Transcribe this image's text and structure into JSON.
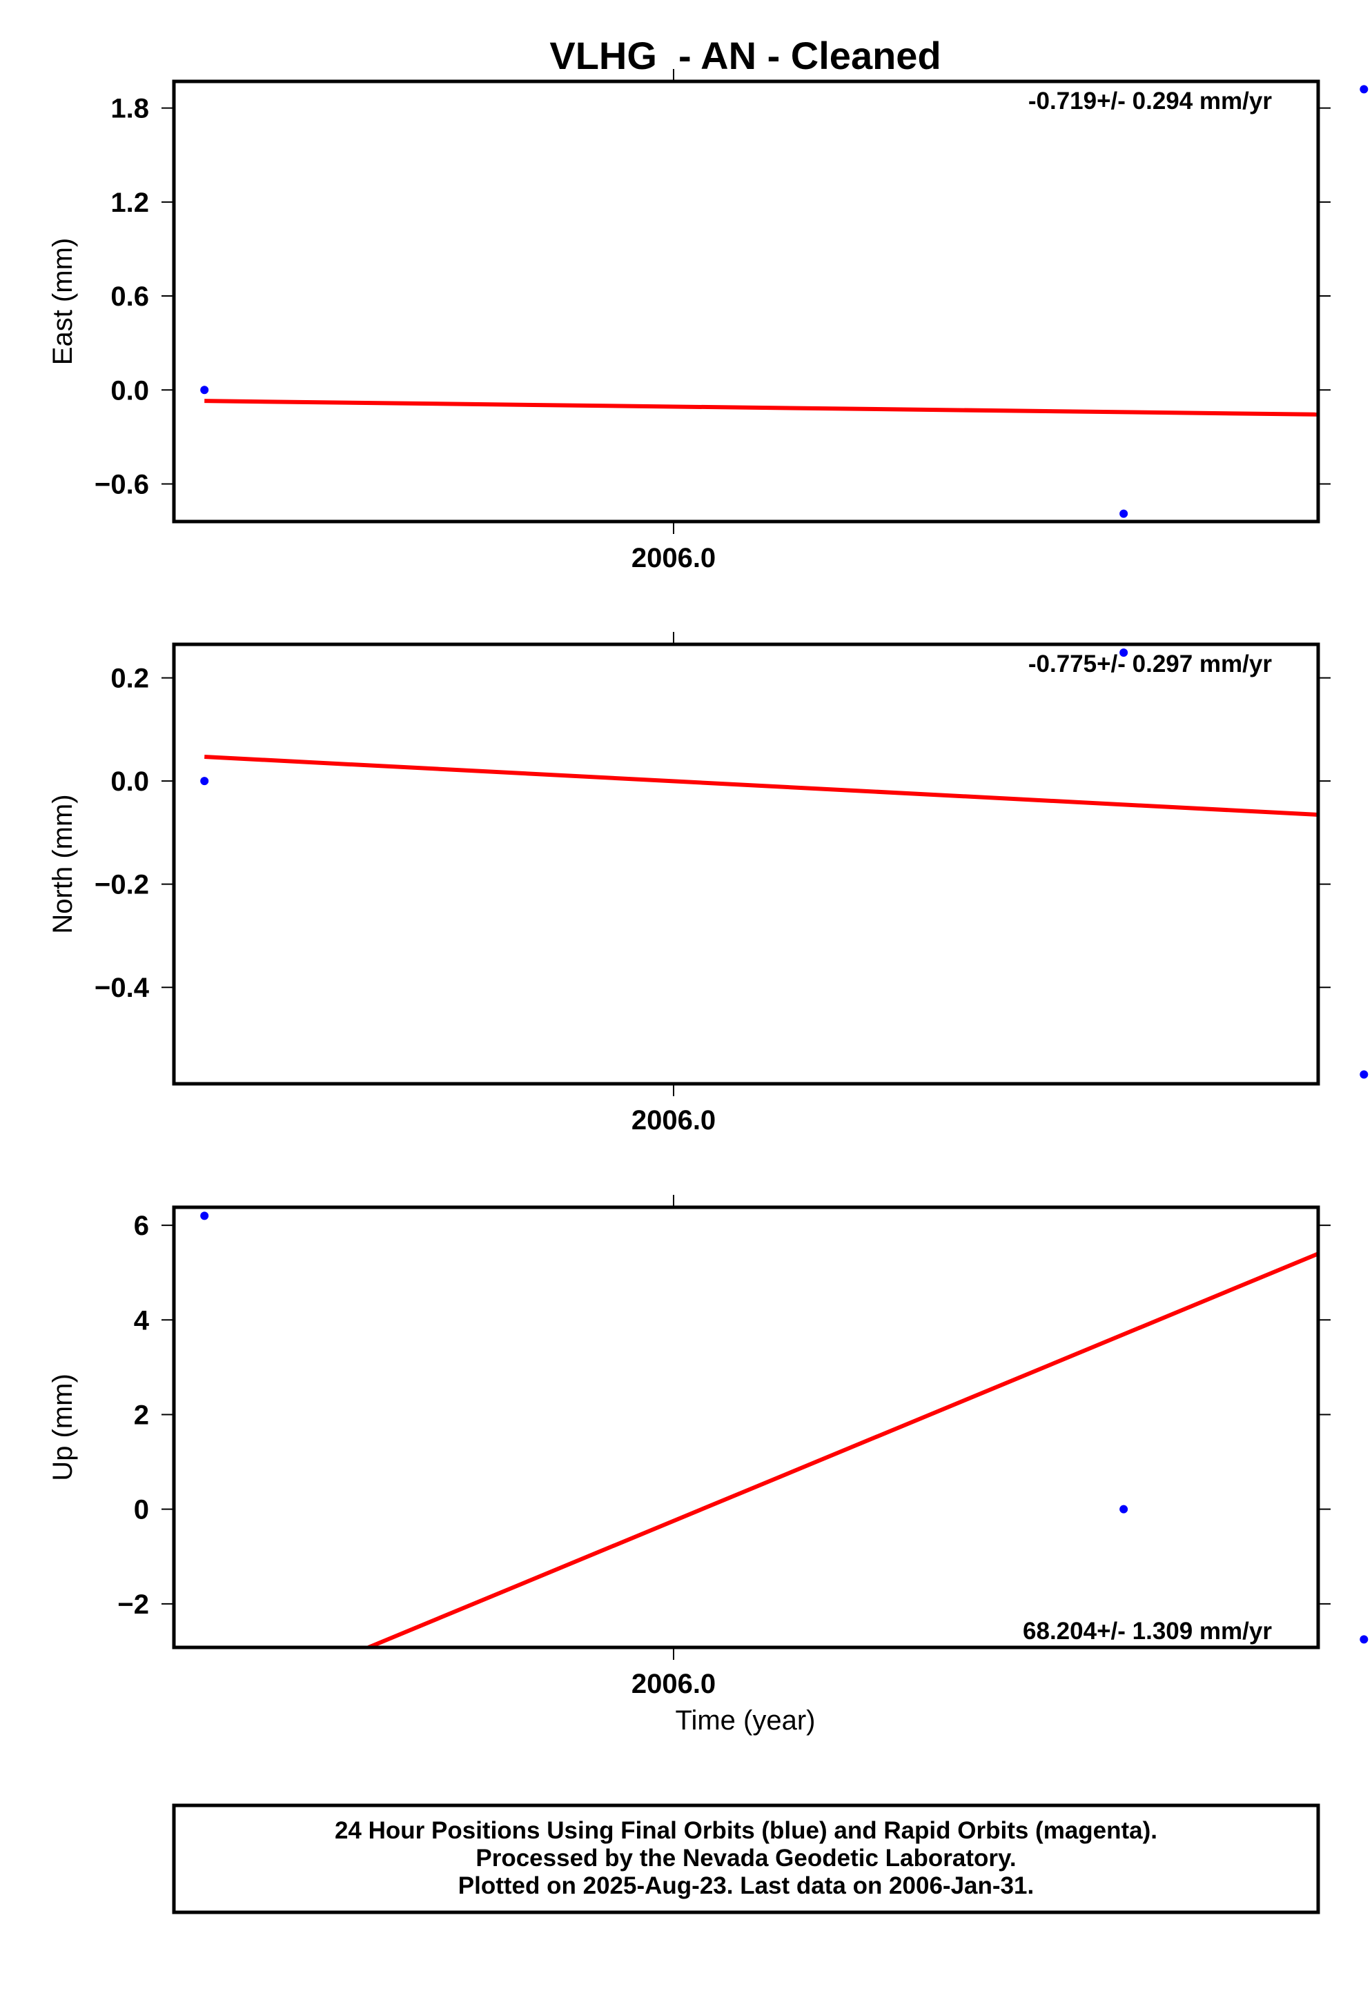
{
  "title": "VLHG  - AN - Cleaned",
  "x_axis_title": "Time (year)",
  "footer": {
    "line1": "24 Hour Positions Using Final Orbits (blue) and Rapid Orbits (magenta).",
    "line2": "Processed by the Nevada Geodetic Laboratory.",
    "line3": "Plotted on 2025-Aug-23. Last data on 2006-Jan-31."
  },
  "colors": {
    "points": "#0000ff",
    "fit": "#ff0000",
    "frame": "#000000"
  },
  "chart_data": [
    {
      "type": "scatter",
      "component": "east",
      "ylabel": "East (mm)",
      "rate_label": "-0.719+/- 0.294 mm/yr",
      "rate_position": "top-right",
      "x_tick_labels": [
        "2006.0"
      ],
      "y_ticks": [
        -0.6,
        0.0,
        0.6,
        1.2,
        1.8
      ],
      "y_tick_labels": [
        "−0.6",
        "0.0",
        "0.6",
        "1.2",
        "1.8"
      ],
      "xlim": [
        2005.9995,
        2006.0025
      ],
      "ylim": [
        -0.84,
        1.97
      ],
      "points": [
        {
          "x": 2005.99958,
          "y": 0.0
        },
        {
          "x": 2006.00199,
          "y": -0.79
        },
        {
          "x": 2006.00262,
          "y": 1.92
        }
      ],
      "fit_line": {
        "x": [
          2005.99958,
          2006.00262
        ],
        "y": [
          -0.07,
          -0.16
        ]
      }
    },
    {
      "type": "scatter",
      "component": "north",
      "ylabel": "North (mm)",
      "rate_label": "-0.775+/- 0.297 mm/yr",
      "rate_position": "top-right",
      "x_tick_labels": [
        "2006.0"
      ],
      "y_ticks": [
        -0.4,
        -0.2,
        0.0,
        0.2
      ],
      "y_tick_labels": [
        "−0.4",
        "−0.2",
        "0.0",
        "0.2"
      ],
      "xlim": [
        2005.9995,
        2006.0025
      ],
      "ylim": [
        -0.587,
        0.265
      ],
      "points": [
        {
          "x": 2005.99958,
          "y": 0.0
        },
        {
          "x": 2006.00199,
          "y": 0.249
        },
        {
          "x": 2006.00262,
          "y": -0.569
        }
      ],
      "fit_line": {
        "x": [
          2005.99958,
          2006.00262
        ],
        "y": [
          0.047,
          -0.07
        ]
      }
    },
    {
      "type": "scatter",
      "component": "up",
      "ylabel": "Up (mm)",
      "rate_label": "68.204+/- 1.309 mm/yr",
      "rate_position": "bottom-right",
      "x_tick_labels": [
        "2006.0"
      ],
      "y_ticks": [
        -2,
        0,
        2,
        4,
        6
      ],
      "y_tick_labels": [
        "−2",
        "0",
        "2",
        "4",
        "6"
      ],
      "xlim": [
        2005.9995,
        2006.0025
      ],
      "ylim": [
        -2.92,
        6.38
      ],
      "points": [
        {
          "x": 2005.99958,
          "y": 6.2
        },
        {
          "x": 2006.00199,
          "y": 0.0
        },
        {
          "x": 2006.00262,
          "y": -2.75
        }
      ],
      "fit_line": {
        "x": [
          2006.00001,
          2006.00262
        ],
        "y": [
          -2.92,
          5.8
        ]
      }
    }
  ]
}
